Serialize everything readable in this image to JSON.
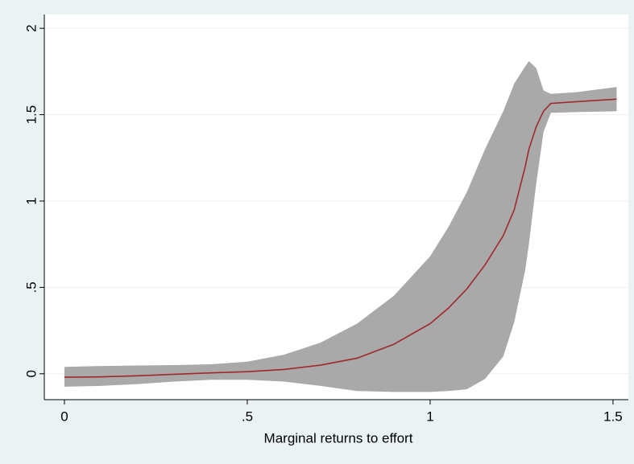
{
  "chart_data": {
    "type": "line",
    "x_label": "Marginal returns to effort",
    "x": [
      0,
      0.1,
      0.2,
      0.3,
      0.4,
      0.5,
      0.6,
      0.7,
      0.8,
      0.9,
      1.0,
      1.05,
      1.1,
      1.15,
      1.2,
      1.23,
      1.26,
      1.27,
      1.29,
      1.31,
      1.33,
      1.4,
      1.51
    ],
    "series": [
      {
        "color": "#a0282c",
        "values": [
          -0.02,
          -0.018,
          -0.012,
          -0.003,
          0.005,
          0.012,
          0.025,
          0.05,
          0.09,
          0.17,
          0.29,
          0.38,
          0.49,
          0.63,
          0.8,
          0.95,
          1.2,
          1.3,
          1.43,
          1.52,
          1.565,
          1.575,
          1.59
        ]
      }
    ],
    "band": {
      "color": "#a9a9a9",
      "upper": [
        0.04,
        0.045,
        0.048,
        0.05,
        0.055,
        0.07,
        0.11,
        0.18,
        0.29,
        0.45,
        0.68,
        0.85,
        1.05,
        1.3,
        1.52,
        1.68,
        1.78,
        1.81,
        1.77,
        1.64,
        1.62,
        1.63,
        1.66
      ],
      "lower": [
        -0.075,
        -0.07,
        -0.06,
        -0.045,
        -0.035,
        -0.035,
        -0.045,
        -0.07,
        -0.1,
        -0.105,
        -0.105,
        -0.1,
        -0.09,
        -0.03,
        0.1,
        0.3,
        0.6,
        0.75,
        1.1,
        1.4,
        1.51,
        1.515,
        1.52
      ]
    },
    "xlim": [
      -0.055,
      1.542
    ],
    "ylim": [
      -0.15,
      2.08
    ],
    "xticks": [
      0,
      {
        "value": 0.5,
        "label": ".5"
      },
      1,
      1.5
    ],
    "yticks": [
      0,
      {
        "value": 0.5,
        "label": ".5"
      },
      1,
      1.5,
      2
    ],
    "grid": true
  }
}
